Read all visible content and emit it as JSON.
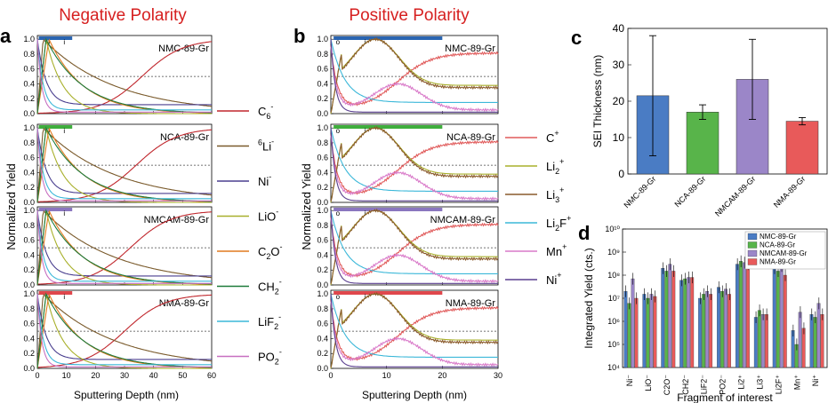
{
  "panels": {
    "a_title": "Negative Polarity",
    "b_title": "Positive Polarity",
    "labels": [
      "a",
      "b",
      "c",
      "d"
    ]
  },
  "samples": [
    "NMC-89-Gr",
    "NCA-89-Gr",
    "NMCAM-89-Gr",
    "NMA-89-Gr"
  ],
  "sample_colors": [
    "#2a65b1",
    "#3fae3d",
    "#8a76bf",
    "#e0474c"
  ],
  "bar_markers": [
    "o",
    "i"
  ],
  "legend_neg": [
    {
      "label": "C6⁻",
      "base": "C",
      "sub": "6",
      "sup": "-",
      "color": "#c0272d"
    },
    {
      "label": "⁶Li⁻",
      "base": "Li",
      "pre": "6",
      "sup": "-",
      "color": "#7a5a2b"
    },
    {
      "label": "Ni⁻",
      "base": "Ni",
      "sup": "-",
      "color": "#4a3f8f"
    },
    {
      "label": "LiO⁻",
      "base": "LiO",
      "sup": "-",
      "color": "#a8b02b"
    },
    {
      "label": "C2O⁻",
      "base": "C",
      "sub": "2",
      "base2": "O",
      "sup": "-",
      "color": "#e07a1f"
    },
    {
      "label": "CH2⁻",
      "base": "CH",
      "sub": "2",
      "sup": "-",
      "color": "#1d7a3a"
    },
    {
      "label": "LiF2⁻",
      "base": "LiF",
      "sub": "2",
      "sup": "-",
      "color": "#3cb8d9"
    },
    {
      "label": "PO2⁻",
      "base": "PO",
      "sub": "2",
      "sup": "-",
      "color": "#c76fc0"
    }
  ],
  "legend_pos": [
    {
      "label": "C⁺",
      "base": "C",
      "sup": "+",
      "color": "#e05a5a"
    },
    {
      "label": "Li2⁺",
      "base": "Li",
      "sub": "2",
      "sup": "+",
      "color": "#a8b02b"
    },
    {
      "label": "Li3⁺",
      "base": "Li",
      "sub": "3",
      "sup": "+",
      "color": "#8a5a2b"
    },
    {
      "label": "Li2F⁺",
      "base": "Li",
      "sub": "2",
      "base2": "F",
      "sup": "+",
      "color": "#3cb8d9"
    },
    {
      "label": "Mn⁺",
      "base": "Mn",
      "sup": "+",
      "color": "#d97ac9"
    },
    {
      "label": "Ni⁺",
      "base": "Ni",
      "sup": "+",
      "color": "#5a3f8f"
    }
  ],
  "axes": {
    "a_xlabel": "Sputtering Depth (nm)",
    "b_xlabel": "Sputtering Depth (nm)",
    "a_xticks": [
      "0",
      "10",
      "20",
      "30",
      "40",
      "50",
      "60"
    ],
    "b_xticks": [
      "0",
      "10",
      "20",
      "30"
    ],
    "yticks": [
      "0.0",
      "0.2",
      "0.4",
      "0.6",
      "0.8",
      "1.0"
    ],
    "ylabel": "Normalized Yield"
  },
  "chart_data": [
    {
      "type": "line",
      "title": "Negative Polarity",
      "panel": "a",
      "xlabel": "Sputtering Depth (nm)",
      "ylabel": "Normalized Yield",
      "xlim": [
        0,
        60
      ],
      "ylim": [
        0,
        1.05
      ],
      "subplots": [
        "NMC-89-Gr",
        "NCA-89-Gr",
        "NMCAM-89-Gr",
        "NMA-89-Gr"
      ],
      "series": [
        {
          "name": "C6-",
          "model": "sigmoid_rise",
          "params": [
            37,
            8
          ]
        },
        {
          "name": "6Li-",
          "model": "peak_decay",
          "params": [
            2,
            25
          ]
        },
        {
          "name": "Ni-",
          "model": "fast_decay",
          "params": [
            3,
            0.12
          ]
        },
        {
          "name": "LiO-",
          "model": "peak_decay",
          "params": [
            3,
            6
          ]
        },
        {
          "name": "C2O-",
          "model": "peak_decay",
          "params": [
            4,
            12
          ]
        },
        {
          "name": "CH2-",
          "model": "peak_decay",
          "params": [
            3,
            13
          ]
        },
        {
          "name": "LiF2-",
          "model": "fast_decay",
          "params": [
            2,
            0.05
          ]
        },
        {
          "name": "PO2-",
          "model": "fast_decay",
          "params": [
            1.5,
            0.02
          ]
        }
      ],
      "ref_line": 0.5
    },
    {
      "type": "line",
      "title": "Positive Polarity",
      "panel": "b",
      "xlabel": "Sputtering Depth (nm)",
      "ylabel": "Normalized Yield",
      "xlim": [
        0,
        30
      ],
      "ylim": [
        0,
        1.05
      ],
      "subplots": [
        "NMC-89-Gr",
        "NCA-89-Gr",
        "NMCAM-89-Gr",
        "NMA-89-Gr"
      ],
      "series": [
        {
          "name": "C+",
          "model": "dip_rise",
          "params": [
            4,
            0.85
          ]
        },
        {
          "name": "Li2+",
          "model": "broad_peak",
          "params": [
            8,
            0.38
          ]
        },
        {
          "name": "Li3+",
          "model": "broad_peak",
          "params": [
            8,
            0.35
          ]
        },
        {
          "name": "Li2F+",
          "model": "fast_decay",
          "params": [
            2.5,
            0.15
          ]
        },
        {
          "name": "Mn+",
          "model": "dip_bump",
          "params": [
            12,
            0.35
          ]
        },
        {
          "name": "Ni+",
          "model": "fast_decay",
          "params": [
            0.8,
            0.02
          ]
        }
      ],
      "ref_line": 0.5
    },
    {
      "type": "bar",
      "panel": "c",
      "title": "",
      "categories": [
        "NMC-89-Gr",
        "NCA-89-Gr",
        "NMCAM-89-Gr",
        "NMA-89-Gr"
      ],
      "values": [
        21.5,
        17,
        26,
        14.5
      ],
      "errors": [
        16.5,
        2,
        11,
        1
      ],
      "ylabel": "SEI Thickness (nm)",
      "ylim": [
        0,
        40
      ],
      "yticks": [
        0,
        10,
        20,
        30,
        40
      ],
      "colors": [
        "#4a7cc4",
        "#58b44a",
        "#9b86c8",
        "#e85a5a"
      ]
    },
    {
      "type": "bar",
      "panel": "d",
      "title": "",
      "yscale": "log",
      "ylim": [
        10000,
        10000000000
      ],
      "ylabel": "Integrated Yield (cts.)",
      "xlabel": "Fragment of interest",
      "categories": [
        "Ni⁻",
        "LiO⁻",
        "C2O⁻",
        "CH2⁻",
        "LiF2⁻",
        "PO2⁻",
        "Li2⁺",
        "Li3⁺",
        "Li2F⁺",
        "Mn⁺",
        "Ni⁺"
      ],
      "ytick_labels": [
        "10⁴",
        "10⁵",
        "10⁶",
        "10⁷",
        "10⁸",
        "10⁹",
        "10¹⁰"
      ],
      "series": [
        {
          "name": "NMC-89-Gr",
          "values": [
            20000000.0,
            15000000.0,
            200000000.0,
            60000000.0,
            10000000.0,
            30000000.0,
            300000000.0,
            1500000.0,
            200000000.0,
            400000.0,
            2000000.0
          ]
        },
        {
          "name": "NCA-89-Gr",
          "values": [
            6000000.0,
            10000000.0,
            150000000.0,
            70000000.0,
            15000000.0,
            20000000.0,
            400000000.0,
            3000000.0,
            150000000.0,
            100000.0,
            1500000.0
          ]
        },
        {
          "name": "NMCAM-89-Gr",
          "values": [
            70000000.0,
            15000000.0,
            300000000.0,
            80000000.0,
            20000000.0,
            25000000.0,
            350000000.0,
            2000000.0,
            250000000.0,
            2500000.0,
            6000000.0
          ]
        },
        {
          "name": "NMA-89-Gr",
          "values": [
            10000000.0,
            12000000.0,
            150000000.0,
            80000000.0,
            15000000.0,
            15000000.0,
            300000000.0,
            2000000.0,
            100000000.0,
            500000.0,
            2000000.0
          ]
        }
      ]
    }
  ]
}
